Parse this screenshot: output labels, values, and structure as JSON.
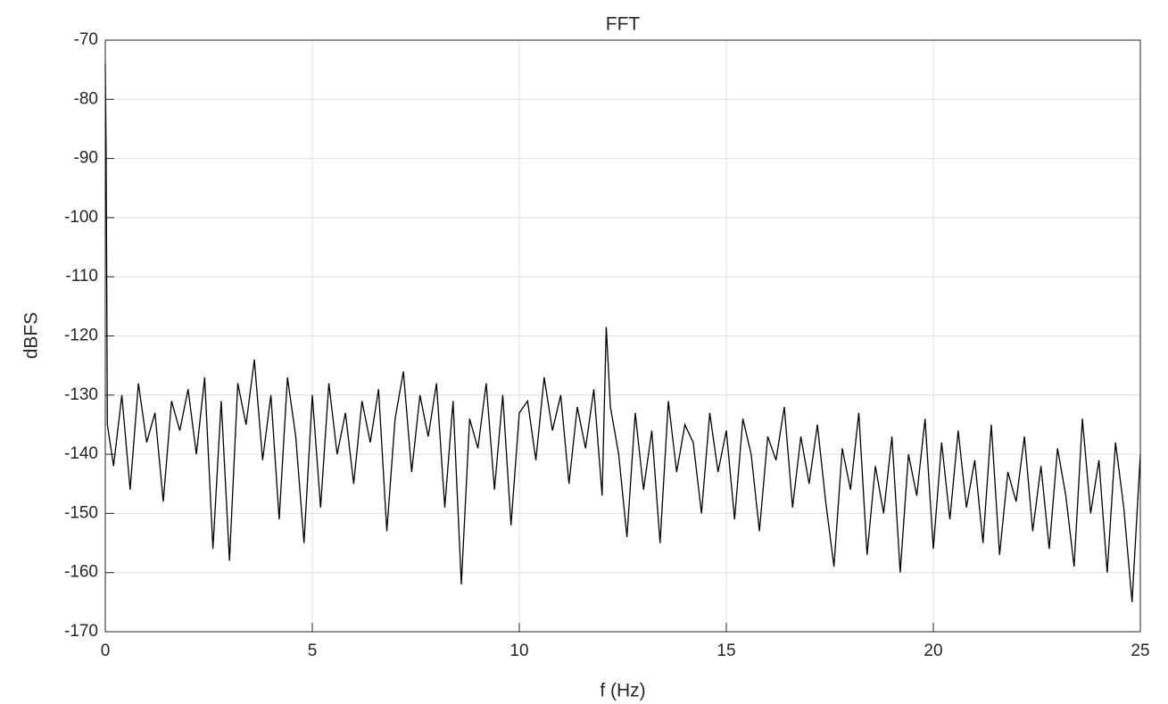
{
  "chart_data": {
    "type": "line",
    "title": "FFT",
    "x_label": "f (Hz)",
    "y_label": "dBFS",
    "x": [
      0,
      0.02,
      0.05,
      0.2,
      0.4,
      0.6,
      0.8,
      1.0,
      1.2,
      1.4,
      1.6,
      1.8,
      2.0,
      2.2,
      2.4,
      2.6,
      2.8,
      3.0,
      3.2,
      3.4,
      3.6,
      3.8,
      4.0,
      4.2,
      4.4,
      4.6,
      4.8,
      5.0,
      5.2,
      5.4,
      5.6,
      5.8,
      6.0,
      6.2,
      6.4,
      6.6,
      6.8,
      7.0,
      7.2,
      7.4,
      7.6,
      7.8,
      8.0,
      8.2,
      8.4,
      8.6,
      8.8,
      9.0,
      9.2,
      9.4,
      9.6,
      9.8,
      10.0,
      10.2,
      10.4,
      10.6,
      10.8,
      11.0,
      11.2,
      11.4,
      11.6,
      11.8,
      12.0,
      12.1,
      12.2,
      12.4,
      12.6,
      12.8,
      13.0,
      13.2,
      13.4,
      13.6,
      13.8,
      14.0,
      14.2,
      14.4,
      14.6,
      14.8,
      15.0,
      15.2,
      15.4,
      15.6,
      15.8,
      16.0,
      16.2,
      16.4,
      16.6,
      16.8,
      17.0,
      17.2,
      17.4,
      17.6,
      17.8,
      18.0,
      18.2,
      18.4,
      18.6,
      18.8,
      19.0,
      19.2,
      19.4,
      19.6,
      19.8,
      20.0,
      20.2,
      20.4,
      20.6,
      20.8,
      21.0,
      21.2,
      21.4,
      21.6,
      21.8,
      22.0,
      22.2,
      22.4,
      22.6,
      22.8,
      23.0,
      23.2,
      23.4,
      23.6,
      23.8,
      24.0,
      24.2,
      24.4,
      24.6,
      24.8,
      25.0
    ],
    "series": [
      {
        "color": "#000000",
        "values": [
          -74,
          -89,
          -135,
          -142,
          -130,
          -146,
          -128,
          -138,
          -133,
          -148,
          -131,
          -136,
          -129,
          -140,
          -127,
          -156,
          -131,
          -158,
          -128,
          -135,
          -124,
          -141,
          -130,
          -151,
          -127,
          -137,
          -155,
          -130,
          -149,
          -128,
          -140,
          -133,
          -145,
          -131,
          -138,
          -129,
          -153,
          -134,
          -126,
          -143,
          -130,
          -137,
          -128,
          -149,
          -131,
          -162,
          -134,
          -139,
          -128,
          -146,
          -130,
          -152,
          -133,
          -131,
          -141,
          -127,
          -136,
          -130,
          -145,
          -132,
          -139,
          -129,
          -147,
          -118.5,
          -132,
          -140,
          -154,
          -133,
          -146,
          -136,
          -155,
          -131,
          -143,
          -135,
          -138,
          -150,
          -133,
          -143,
          -136,
          -151,
          -134,
          -140,
          -153,
          -137,
          -141,
          -132,
          -149,
          -137,
          -145,
          -135,
          -148,
          -159,
          -139,
          -146,
          -133,
          -157,
          -142,
          -150,
          -137,
          -160,
          -140,
          -147,
          -134,
          -156,
          -138,
          -151,
          -136,
          -149,
          -141,
          -155,
          -135,
          -157,
          -143,
          -148,
          -137,
          -153,
          -142,
          -156,
          -139,
          -147,
          -159,
          -134,
          -150,
          -141,
          -160,
          -138,
          -149,
          -165,
          -140
        ]
      }
    ],
    "xlim": [
      0,
      25
    ],
    "xticks": [
      0,
      5,
      10,
      15,
      20,
      25
    ],
    "ylim": [
      -170,
      -70
    ],
    "yticks": [
      -170,
      -160,
      -150,
      -140,
      -130,
      -120,
      -110,
      -100,
      -90,
      -80,
      -70
    ],
    "grid": true
  }
}
